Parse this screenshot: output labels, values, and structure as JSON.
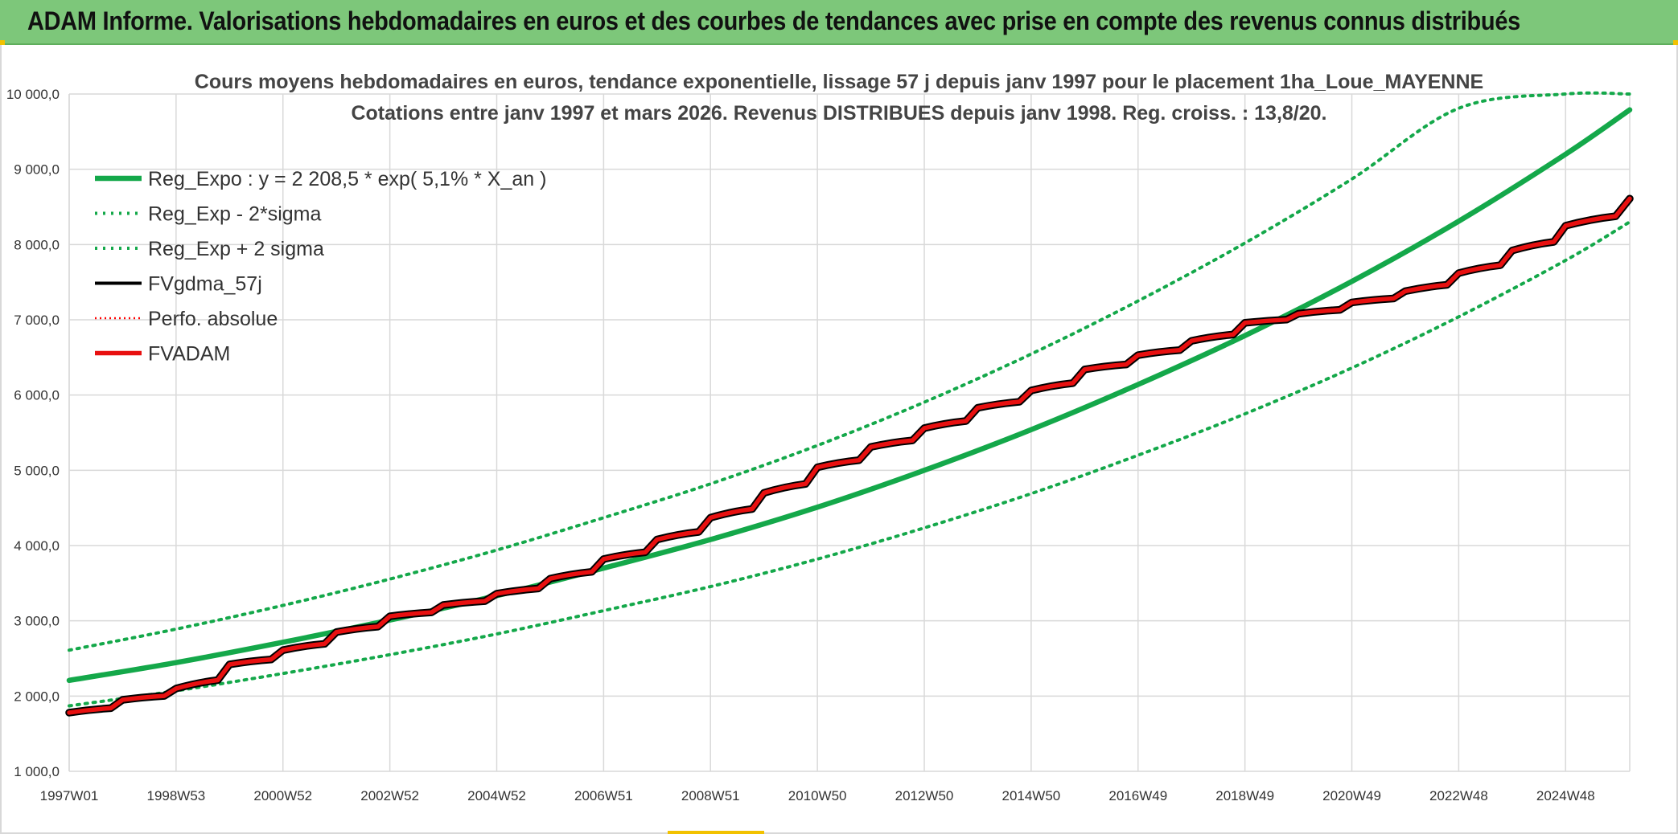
{
  "banner": {
    "title": "ADAM Informe. Valorisations hebdomadaires en euros et des courbes de tendances avec prise en compte des revenus connus distribués"
  },
  "colors": {
    "banner_bg": "#7dc77a",
    "green": "#14a84a",
    "black": "#000000",
    "red": "#e81010",
    "red_dotted": "#ff0000"
  },
  "chart_data": {
    "type": "line",
    "title": [
      "Cours moyens hebdomadaires en euros, tendance exponentielle, lissage 57 j depuis janv 1997 pour le placement 1ha_Loue_MAYENNE",
      "Cotations entre janv 1997 et mars 2026. Revenus DISTRIBUES depuis janv 1998. Reg. croiss. : 13,8/20."
    ],
    "xlabel": "",
    "ylabel": "",
    "ylim": [
      1000,
      10000
    ],
    "xlim": [
      1997.0,
      2026.2
    ],
    "grid": true,
    "y_ticks": [
      1000,
      2000,
      3000,
      4000,
      5000,
      6000,
      7000,
      8000,
      9000,
      10000
    ],
    "y_tick_labels": [
      "1 000,0",
      "2 000,0",
      "3 000,0",
      "4 000,0",
      "5 000,0",
      "6 000,0",
      "7 000,0",
      "8 000,0",
      "9 000,0",
      "10 000,0"
    ],
    "x_tick_labels": [
      "1997W01",
      "1998W53",
      "2000W52",
      "2002W52",
      "2004W52",
      "2006W51",
      "2008W51",
      "2010W50",
      "2012W50",
      "2014W50",
      "2016W49",
      "2018W49",
      "2020W49",
      "2022W48",
      "2024W48"
    ],
    "x_tick_years": [
      1997.0,
      1999.0,
      2001.0,
      2003.0,
      2005.0,
      2007.0,
      2009.0,
      2011.0,
      2013.0,
      2015.0,
      2017.0,
      2019.0,
      2021.0,
      2023.0,
      2025.0
    ],
    "legend_position": "top-left",
    "series": [
      {
        "name": "Reg_Expo : y = 2 208,5 * exp( 5,1% *  X_an )",
        "style": "solid",
        "color": "#14a84a",
        "x": [
          1997.0,
          1999.0,
          2001.0,
          2003.0,
          2005.0,
          2007.0,
          2009.0,
          2011.0,
          2013.0,
          2015.0,
          2017.0,
          2019.0,
          2021.0,
          2023.0,
          2025.0,
          2026.2
        ],
        "values": [
          2208.5,
          2445,
          2715,
          3010,
          3335,
          3700,
          4080,
          4510,
          5000,
          5540,
          6140,
          6790,
          7510,
          8310,
          9200,
          9790
        ]
      },
      {
        "name": "Reg_Exp - 2*sigma",
        "style": "dotted",
        "color": "#14a84a",
        "x": [
          1997.0,
          1999.0,
          2001.0,
          2003.0,
          2005.0,
          2007.0,
          2009.0,
          2011.0,
          2013.0,
          2015.0,
          2017.0,
          2019.0,
          2021.0,
          2023.0,
          2025.0,
          2026.2
        ],
        "values": [
          1870,
          2070,
          2300,
          2550,
          2825,
          3135,
          3455,
          3820,
          4235,
          4690,
          5200,
          5750,
          6360,
          7040,
          7790,
          8300
        ]
      },
      {
        "name": "Reg_Exp + 2 sigma",
        "style": "dotted",
        "color": "#14a84a",
        "x": [
          1997.0,
          1999.0,
          2001.0,
          2003.0,
          2005.0,
          2007.0,
          2009.0,
          2011.0,
          2013.0,
          2015.0,
          2017.0,
          2019.0,
          2021.0,
          2023.0,
          2025.0,
          2026.2
        ],
        "values": [
          2610,
          2890,
          3205,
          3555,
          3940,
          4370,
          4820,
          5330,
          5905,
          6545,
          7250,
          8020,
          8870,
          9810,
          10000,
          10000
        ]
      },
      {
        "name": "FVgdma_57j",
        "style": "solid",
        "color": "#000000",
        "x": [
          1997.0,
          1998.0,
          1999.0,
          2000.0,
          2001.0,
          2002.0,
          2003.0,
          2004.0,
          2005.0,
          2006.0,
          2007.0,
          2008.0,
          2009.0,
          2010.0,
          2011.0,
          2012.0,
          2013.0,
          2014.0,
          2015.0,
          2016.0,
          2017.0,
          2018.0,
          2019.0,
          2020.0,
          2021.0,
          2022.0,
          2023.0,
          2024.0,
          2025.0,
          2026.2
        ],
        "values": [
          1780,
          1950,
          2100,
          2420,
          2610,
          2850,
          3060,
          3210,
          3360,
          3560,
          3820,
          4080,
          4370,
          4700,
          5040,
          5310,
          5560,
          5830,
          6060,
          6340,
          6530,
          6720,
          6960,
          7080,
          7230,
          7380,
          7620,
          7920,
          8250,
          8610
        ]
      },
      {
        "name": "Perfo. absolue",
        "style": "dotted",
        "color": "#ff0000",
        "x": [
          1997.0,
          1998.0,
          1999.0,
          2000.0,
          2001.0,
          2002.0,
          2003.0,
          2004.0,
          2005.0,
          2006.0,
          2007.0,
          2008.0,
          2009.0,
          2010.0,
          2011.0,
          2012.0,
          2013.0,
          2014.0,
          2015.0,
          2016.0,
          2017.0,
          2018.0,
          2019.0,
          2020.0,
          2021.0,
          2022.0,
          2023.0,
          2024.0,
          2025.0,
          2026.2
        ],
        "values": [
          1780,
          1950,
          2100,
          2420,
          2610,
          2850,
          3060,
          3210,
          3360,
          3560,
          3820,
          4080,
          4370,
          4700,
          5040,
          5310,
          5560,
          5830,
          6060,
          6340,
          6530,
          6720,
          6960,
          7080,
          7230,
          7380,
          7620,
          7920,
          8250,
          8610
        ]
      },
      {
        "name": "FVADAM",
        "style": "solid",
        "color": "#e81010",
        "x": [
          1997.0,
          1998.0,
          1999.0,
          2000.0,
          2001.0,
          2002.0,
          2003.0,
          2004.0,
          2005.0,
          2006.0,
          2007.0,
          2008.0,
          2009.0,
          2010.0,
          2011.0,
          2012.0,
          2013.0,
          2014.0,
          2015.0,
          2016.0,
          2017.0,
          2018.0,
          2019.0,
          2020.0,
          2021.0,
          2022.0,
          2023.0,
          2024.0,
          2025.0,
          2026.2
        ],
        "values": [
          1780,
          1950,
          2100,
          2420,
          2610,
          2850,
          3060,
          3210,
          3360,
          3560,
          3820,
          4080,
          4370,
          4700,
          5040,
          5310,
          5560,
          5830,
          6060,
          6340,
          6530,
          6720,
          6960,
          7080,
          7230,
          7380,
          7620,
          7920,
          8250,
          8610
        ]
      }
    ]
  }
}
